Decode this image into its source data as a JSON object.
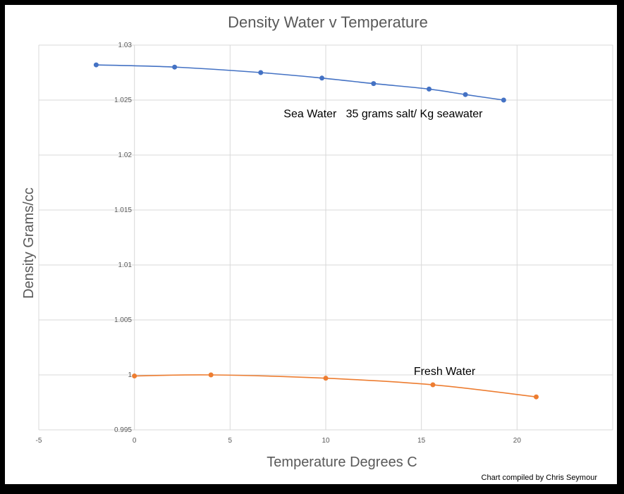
{
  "chart_data": {
    "type": "scatter",
    "title": "Density Water v Temperature",
    "xlabel": "Temperature Degrees C",
    "ylabel": "Density Grams/cc",
    "xlim": [
      -5,
      25
    ],
    "ylim": [
      0.995,
      1.03
    ],
    "x_ticks": [
      -5,
      0,
      5,
      10,
      15,
      20
    ],
    "y_ticks": [
      0.995,
      1.0,
      1.005,
      1.01,
      1.015,
      1.02,
      1.025,
      1.03
    ],
    "x_tick_labels": [
      "-5",
      "0",
      "5",
      "10",
      "15",
      "20"
    ],
    "y_tick_labels": [
      "0.995",
      "1",
      "1.005",
      "1.01",
      "1.015",
      "1.02",
      "1.025",
      "1.03"
    ],
    "grid": true,
    "series": [
      {
        "name": "Sea Water 35 grams salt/ Kg seawater",
        "color": "#4472C4",
        "points": [
          {
            "x": -2,
            "y": 1.0282
          },
          {
            "x": 2.1,
            "y": 1.028
          },
          {
            "x": 6.6,
            "y": 1.0275
          },
          {
            "x": 9.8,
            "y": 1.027
          },
          {
            "x": 12.5,
            "y": 1.0265
          },
          {
            "x": 15.4,
            "y": 1.026
          },
          {
            "x": 17.3,
            "y": 1.0255
          },
          {
            "x": 19.3,
            "y": 1.025
          }
        ]
      },
      {
        "name": "Fresh Water",
        "color": "#ED7D31",
        "points": [
          {
            "x": 0,
            "y": 0.9999
          },
          {
            "x": 4,
            "y": 1.0
          },
          {
            "x": 10,
            "y": 0.9997
          },
          {
            "x": 15.6,
            "y": 0.9991
          },
          {
            "x": 21,
            "y": 0.998
          }
        ]
      }
    ],
    "annotations": [
      {
        "text": "Sea Water   35 grams salt/ Kg seawater",
        "x": 7.8,
        "y": 1.0238
      },
      {
        "text": "Fresh Water",
        "x": 14.6,
        "y": 1.0
      }
    ],
    "credit": "Chart compiled by Chris Seymour"
  }
}
